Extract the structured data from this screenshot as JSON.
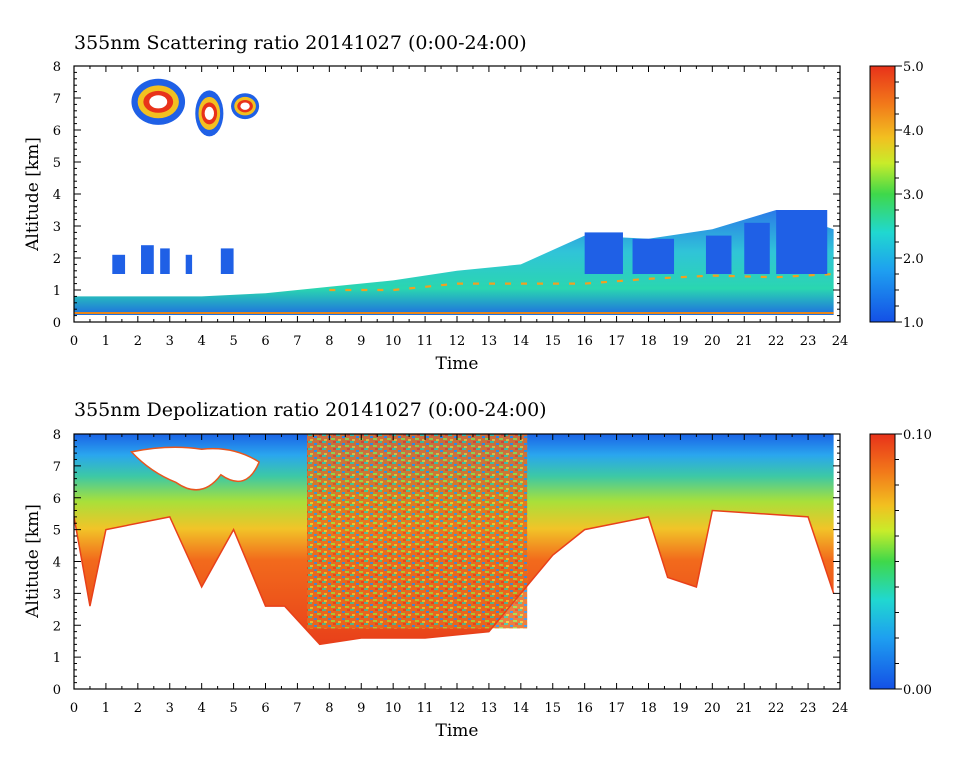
{
  "chart_data": [
    {
      "type": "heatmap",
      "title": "355nm Scattering ratio  20141027 (0:00-24:00)",
      "xlabel": "Time",
      "ylabel": "Altitude [km]",
      "xlim": [
        0,
        24
      ],
      "ylim": [
        0,
        8
      ],
      "xticks": [
        "0",
        "1",
        "2",
        "3",
        "4",
        "5",
        "6",
        "7",
        "8",
        "9",
        "10",
        "11",
        "12",
        "13",
        "14",
        "15",
        "16",
        "17",
        "18",
        "19",
        "20",
        "21",
        "22",
        "23",
        "24"
      ],
      "yticks": [
        "0",
        "1",
        "2",
        "3",
        "4",
        "5",
        "6",
        "7",
        "8"
      ],
      "colorbar": {
        "min": 1.0,
        "max": 5.0,
        "ticks": [
          "1.0",
          "2.0",
          "3.0",
          "4.0",
          "5.0"
        ]
      },
      "features": {
        "boundary_layer_top_km": [
          [
            0,
            0.8
          ],
          [
            2,
            0.8
          ],
          [
            4,
            0.8
          ],
          [
            6,
            0.9
          ],
          [
            8,
            1.1
          ],
          [
            10,
            1.3
          ],
          [
            12,
            1.6
          ],
          [
            14,
            1.8
          ],
          [
            16,
            2.7
          ],
          [
            18,
            2.6
          ],
          [
            20,
            2.9
          ],
          [
            22,
            3.5
          ],
          [
            23.8,
            2.9
          ]
        ],
        "elevated_aerosol_layer_km": [
          [
            8,
            1.0
          ],
          [
            10,
            1.0
          ],
          [
            12,
            1.2
          ],
          [
            14,
            1.2
          ],
          [
            16,
            1.2
          ],
          [
            18,
            1.35
          ],
          [
            20,
            1.45
          ],
          [
            22,
            1.4
          ],
          [
            23.8,
            1.5
          ]
        ],
        "cirrus_cloud": {
          "time_h": [
            1.8,
            5.8
          ],
          "altitude_km": [
            5.8,
            7.6
          ]
        },
        "ground_return_km": 0.28
      }
    },
    {
      "type": "heatmap",
      "title": "355nm Depolization ratio  20141027 (0:00-24:00)",
      "xlabel": "Time",
      "ylabel": "Altitude [km]",
      "xlim": [
        0,
        24
      ],
      "ylim": [
        0,
        8
      ],
      "xticks": [
        "0",
        "1",
        "2",
        "3",
        "4",
        "5",
        "6",
        "7",
        "8",
        "9",
        "10",
        "11",
        "12",
        "13",
        "14",
        "15",
        "16",
        "17",
        "18",
        "19",
        "20",
        "21",
        "22",
        "23",
        "24"
      ],
      "yticks": [
        "0",
        "1",
        "2",
        "3",
        "4",
        "5",
        "6",
        "7",
        "8"
      ],
      "colorbar": {
        "min": 0.0,
        "max": 0.1,
        "ticks": [
          "0.00",
          "0.10"
        ]
      },
      "features": {
        "signal_bottom_km": [
          [
            0,
            5.4
          ],
          [
            0.5,
            2.6
          ],
          [
            1,
            5.0
          ],
          [
            3,
            5.4
          ],
          [
            4,
            3.2
          ],
          [
            5,
            5.0
          ],
          [
            6,
            2.6
          ],
          [
            6.6,
            2.6
          ],
          [
            7.7,
            1.4
          ],
          [
            9,
            1.6
          ],
          [
            11,
            1.6
          ],
          [
            13,
            1.8
          ],
          [
            14,
            3.0
          ],
          [
            15,
            4.2
          ],
          [
            16,
            5.0
          ],
          [
            18,
            5.4
          ],
          [
            18.6,
            3.5
          ],
          [
            19.5,
            3.2
          ],
          [
            20,
            5.6
          ],
          [
            23,
            5.4
          ],
          [
            23.8,
            3.0
          ]
        ],
        "cirrus_gap": {
          "time_h": [
            1.8,
            5.8
          ],
          "altitude_km": [
            6.0,
            7.6
          ]
        }
      }
    }
  ]
}
